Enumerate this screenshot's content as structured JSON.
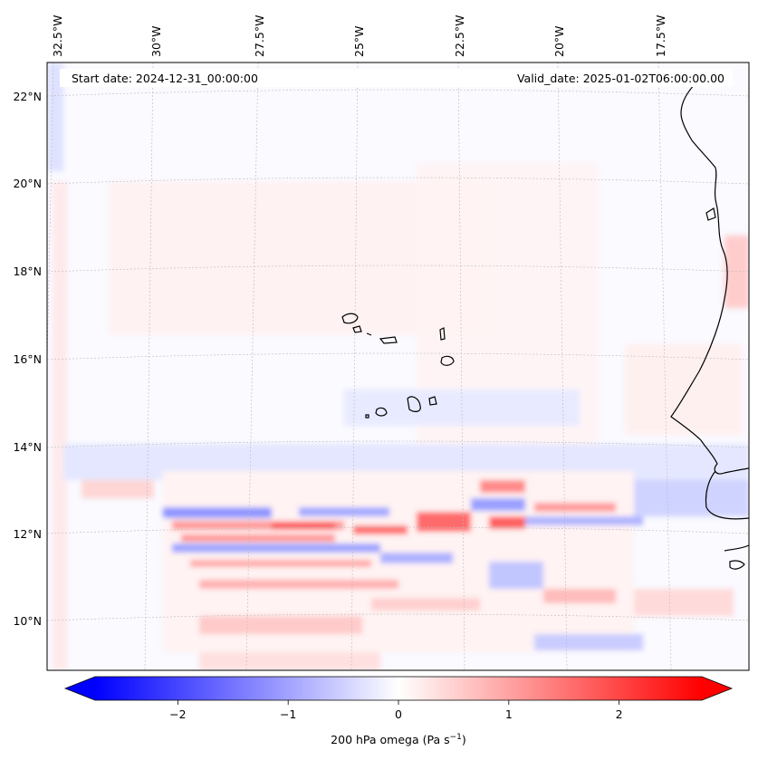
{
  "header": {
    "start_date": "Start date: 2024-12-31_00:00:00",
    "valid_date": "Valid_date: 2025-01-02T06:00:00.00"
  },
  "map": {
    "variable": "200 hPa omega",
    "units": "Pa s",
    "units_exponent": "−1",
    "lon_labels": [
      "32.5°W",
      "30°W",
      "27.5°W",
      "25°W",
      "22.5°W",
      "20°W",
      "17.5°W"
    ],
    "lat_labels": [
      "22°N",
      "20°N",
      "18°N",
      "16°N",
      "14°N",
      "12°N",
      "10°N"
    ],
    "colormap": "bwr",
    "colors": {
      "negative": "#0000ff",
      "zero": "#ffffff",
      "positive": "#ff0000",
      "coast": "#000000"
    }
  },
  "colorbar": {
    "min": -2.75,
    "max": 2.75,
    "ticks": [
      -2,
      -1,
      0,
      1,
      2
    ],
    "tick_labels": [
      "−2",
      "−1",
      "0",
      "1",
      "2"
    ],
    "extend": "both"
  }
}
